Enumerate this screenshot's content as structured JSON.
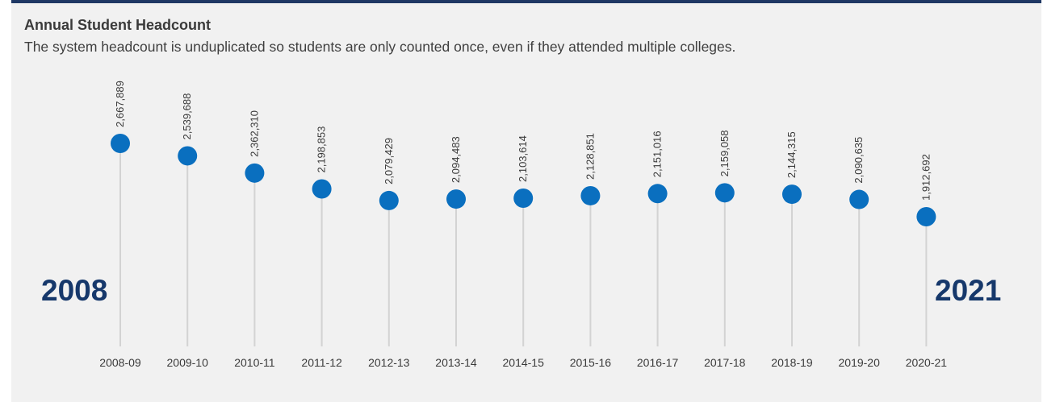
{
  "header": {
    "title": "Annual Student Headcount",
    "subtitle": "The system headcount is unduplicated so students are only counted once, even if they attended multiple colleges."
  },
  "start_year": "2008",
  "end_year": "2021",
  "colors": {
    "marker": "#0a6fbf",
    "stem": "#d3d3d3",
    "accent": "#16386b",
    "rule": "#1f3864",
    "background": "#f1f1f1"
  },
  "chart_data": {
    "type": "scatter",
    "style": "lollipop",
    "title": "Annual Student Headcount",
    "subtitle": "The system headcount is unduplicated so students are only counted once, even if they attended multiple colleges.",
    "categories": [
      "2008-09",
      "2009-10",
      "2010-11",
      "2011-12",
      "2012-13",
      "2013-14",
      "2014-15",
      "2015-16",
      "2016-17",
      "2017-18",
      "2018-19",
      "2019-20",
      "2020-21"
    ],
    "values": [
      2667889,
      2539688,
      2362310,
      2198853,
      2079429,
      2094483,
      2103614,
      2128851,
      2151016,
      2159058,
      2144315,
      2090635,
      1912692
    ],
    "value_labels": [
      "2,667,889",
      "2,539,688",
      "2,362,310",
      "2,198,853",
      "2,079,429",
      "2,094,483",
      "2,103,614",
      "2,128,851",
      "2,151,016",
      "2,159,058",
      "2,144,315",
      "2,090,635",
      "1,912,692"
    ],
    "grid": false,
    "legend": "none"
  }
}
